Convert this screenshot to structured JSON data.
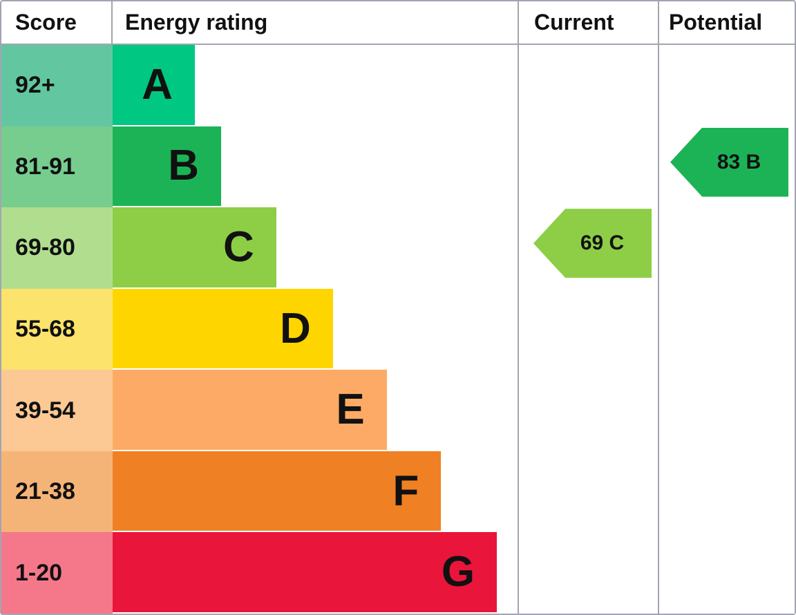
{
  "header": {
    "score": "Score",
    "rating": "Energy rating",
    "current": "Current",
    "potential": "Potential"
  },
  "bands": [
    {
      "score": "92+",
      "letter": "A",
      "cell_color": "#62c7a0",
      "bar_color": "#00c781",
      "bar_width_pct": 20.3
    },
    {
      "score": "81-91",
      "letter": "B",
      "cell_color": "#76cd8e",
      "bar_color": "#1cb356",
      "bar_width_pct": 26.8
    },
    {
      "score": "69-80",
      "letter": "C",
      "cell_color": "#b0de8e",
      "bar_color": "#8dce46",
      "bar_width_pct": 40.4
    },
    {
      "score": "55-68",
      "letter": "D",
      "cell_color": "#fce36c",
      "bar_color": "#ffd500",
      "bar_width_pct": 54.4
    },
    {
      "score": "39-54",
      "letter": "E",
      "cell_color": "#fcc894",
      "bar_color": "#fcaa65",
      "bar_width_pct": 67.7
    },
    {
      "score": "21-38",
      "letter": "F",
      "cell_color": "#f5b477",
      "bar_color": "#ef8023",
      "bar_width_pct": 81.1
    },
    {
      "score": "1-20",
      "letter": "G",
      "cell_color": "#f4788a",
      "bar_color": "#e9153b",
      "bar_width_pct": 94.9
    }
  ],
  "current": {
    "label": "69 C",
    "value": 69,
    "band": "C",
    "band_index": 2,
    "color": "#8dce46"
  },
  "potential": {
    "label": "83 B",
    "value": 83,
    "band": "B",
    "band_index": 1,
    "color": "#1cb356"
  },
  "grid_color": "#a2a5b0",
  "chart_data": {
    "type": "bar",
    "title": "Energy rating",
    "orientation": "horizontal",
    "categories": [
      "A",
      "B",
      "C",
      "D",
      "E",
      "F",
      "G"
    ],
    "score_ranges": [
      "92+",
      "81-91",
      "69-80",
      "55-68",
      "39-54",
      "21-38",
      "1-20"
    ],
    "bar_colors": [
      "#00c781",
      "#1cb356",
      "#8dce46",
      "#ffd500",
      "#fcaa65",
      "#ef8023",
      "#e9153b"
    ],
    "bar_widths_pct": [
      20.3,
      26.8,
      40.4,
      54.4,
      67.7,
      81.1,
      94.9
    ],
    "columns": [
      "Score",
      "Energy rating",
      "Current",
      "Potential"
    ],
    "markers": [
      {
        "name": "Current",
        "value": 69,
        "band": "C"
      },
      {
        "name": "Potential",
        "value": 83,
        "band": "B"
      }
    ],
    "grid": true,
    "legend": false
  }
}
